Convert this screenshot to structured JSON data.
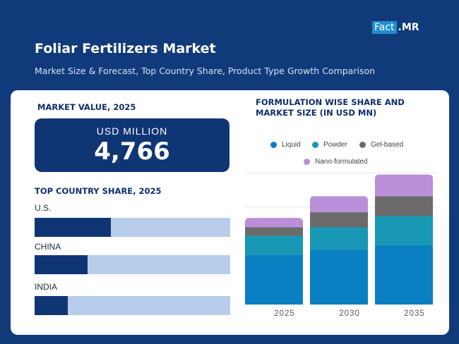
{
  "brand": {
    "part1": "Fact",
    "part2": ".MR"
  },
  "header": {
    "title": "Foliar Fertilizers Market",
    "subtitle": "Market Size & Forecast, Top Country Share, Product Type Growth Comparison"
  },
  "market_value": {
    "heading": "MARKET VALUE, 2025",
    "unit": "USD MILLION",
    "value": "4,766"
  },
  "country_share": {
    "heading": "TOP COUNTRY SHARE, 2025",
    "countries": [
      {
        "name": "U.S.",
        "share": 0.39
      },
      {
        "name": "CHINA",
        "share": 0.27
      },
      {
        "name": "INDIA",
        "share": 0.17
      }
    ]
  },
  "formulation": {
    "heading_line1": "FORMULATION WISE SHARE AND",
    "heading_line2": "MARKET SIZE (IN USD MN)"
  },
  "colors": {
    "dark_blue": "#0f3574",
    "light_blue": "#b8cdec",
    "liquid": "#0a7fc2",
    "powder": "#1898b4",
    "gel": "#6a6a6a",
    "nano": "#b98fd9"
  },
  "chart_data": {
    "type": "bar",
    "stacked": true,
    "categories": [
      "2025",
      "2030",
      "2035"
    ],
    "series": [
      {
        "name": "Liquid",
        "color": "#0a7fc2",
        "values": [
          53,
          58,
          63
        ]
      },
      {
        "name": "Powder",
        "color": "#1898b4",
        "values": [
          20,
          24,
          31
        ]
      },
      {
        "name": "Gel-based",
        "color": "#6a6a6a",
        "values": [
          9,
          16,
          21
        ]
      },
      {
        "name": "Nano-formulated",
        "color": "#b98fd9",
        "values": [
          10,
          17,
          23
        ]
      }
    ],
    "ylim": [
      0,
      140
    ],
    "grid": true,
    "legend": "top"
  }
}
